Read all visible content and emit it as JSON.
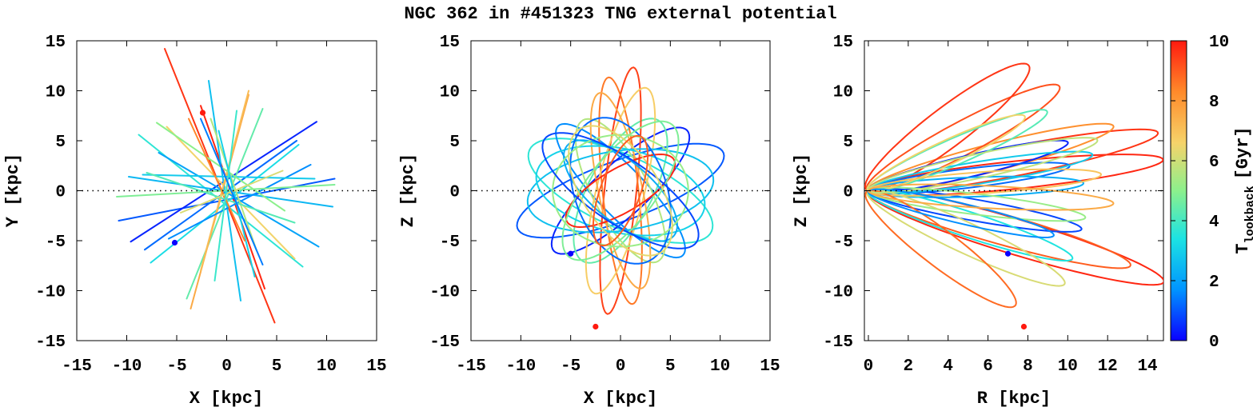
{
  "title": "NGC 362 in #451323 TNG external potential",
  "chart_data": [
    {
      "type": "scatter",
      "panel": "xy",
      "xlabel": "X [kpc]",
      "ylabel": "Y [kpc]",
      "xlim": [
        -15,
        15
      ],
      "ylim": [
        -15,
        15
      ],
      "xticks": [
        -15,
        -10,
        -5,
        0,
        5,
        10,
        15
      ],
      "yticks": [
        -15,
        -10,
        -5,
        0,
        5,
        10,
        15
      ],
      "zero_line": "dotted",
      "start_markers": [
        {
          "x": -5.2,
          "y": -5.2,
          "t_lookback": 0
        },
        {
          "x": -2.4,
          "y": 7.8,
          "t_lookback": 10
        }
      ],
      "streaks": [
        {
          "x1": -6.2,
          "y1": 14.2,
          "x2": 4.8,
          "y2": -13.2,
          "t": 9.6
        },
        {
          "x1": -2.6,
          "y1": 8.5,
          "x2": 3.8,
          "y2": -9.8,
          "t": 9.8
        },
        {
          "x1": -10.8,
          "y1": -3.0,
          "x2": 10.8,
          "y2": 1.2,
          "t": 1.0
        },
        {
          "x1": -9.6,
          "y1": -5.1,
          "x2": 9.0,
          "y2": 6.9,
          "t": 0.4
        },
        {
          "x1": -8.2,
          "y1": -5.9,
          "x2": 7.0,
          "y2": 5.0,
          "t": 1.2
        },
        {
          "x1": -7.6,
          "y1": -7.2,
          "x2": 7.2,
          "y2": 4.6,
          "t": 3.2
        },
        {
          "x1": -8.8,
          "y1": 5.6,
          "x2": 7.6,
          "y2": -7.6,
          "t": 3.6
        },
        {
          "x1": -6.0,
          "y1": 6.4,
          "x2": 6.8,
          "y2": -6.8,
          "t": 6.6
        },
        {
          "x1": -9.8,
          "y1": 1.4,
          "x2": 10.6,
          "y2": -1.6,
          "t": 2.4
        },
        {
          "x1": -4.0,
          "y1": -10.8,
          "x2": 3.6,
          "y2": 8.2,
          "t": 4.4
        },
        {
          "x1": -3.6,
          "y1": -11.8,
          "x2": 2.2,
          "y2": 9.6,
          "t": 7.6
        },
        {
          "x1": -1.8,
          "y1": 11.0,
          "x2": 1.4,
          "y2": -11.0,
          "t": 2.6
        },
        {
          "x1": 2.2,
          "y1": 10.0,
          "x2": -2.6,
          "y2": -8.0,
          "t": 7.2
        },
        {
          "x1": -6.8,
          "y1": 3.8,
          "x2": 9.2,
          "y2": -5.6,
          "t": 2.0
        },
        {
          "x1": -5.8,
          "y1": -4.8,
          "x2": 8.4,
          "y2": 2.6,
          "t": 1.6
        },
        {
          "x1": -11.0,
          "y1": -0.6,
          "x2": 10.8,
          "y2": 0.6,
          "t": 4.8
        },
        {
          "x1": -8.4,
          "y1": 1.6,
          "x2": 8.8,
          "y2": 1.2,
          "t": 2.8
        },
        {
          "x1": -1.6,
          "y1": 7.2,
          "x2": 3.0,
          "y2": -6.0,
          "t": 5.6
        },
        {
          "x1": -7.0,
          "y1": 6.8,
          "x2": 5.8,
          "y2": -2.0,
          "t": 5.0
        },
        {
          "x1": 6.8,
          "y1": -3.2,
          "x2": -8.0,
          "y2": 1.8,
          "t": 4.2
        },
        {
          "x1": -0.8,
          "y1": 6.0,
          "x2": 2.8,
          "y2": -8.6,
          "t": 3.0
        },
        {
          "x1": -3.8,
          "y1": 7.2,
          "x2": 1.8,
          "y2": -5.0,
          "t": 8.4
        },
        {
          "x1": -4.6,
          "y1": -2.2,
          "x2": 5.6,
          "y2": 2.0,
          "t": 6.2
        },
        {
          "x1": 1.0,
          "y1": 8.0,
          "x2": -1.2,
          "y2": -9.0,
          "t": 3.8
        },
        {
          "x1": -2.6,
          "y1": 7.2,
          "x2": 3.6,
          "y2": -7.4,
          "t": 1.4
        }
      ]
    },
    {
      "type": "scatter",
      "panel": "xz",
      "xlabel": "X [kpc]",
      "ylabel": "Z [kpc]",
      "xlim": [
        -15,
        15
      ],
      "ylim": [
        -15,
        15
      ],
      "xticks": [
        -15,
        -10,
        -5,
        0,
        5,
        10,
        15
      ],
      "yticks": [
        -15,
        -10,
        -5,
        0,
        5,
        10,
        15
      ],
      "zero_line": "dotted",
      "start_markers": [
        {
          "x": -5.0,
          "y": -6.3,
          "t_lookback": 0
        },
        {
          "x": -2.5,
          "y": -13.6,
          "t_lookback": 10
        }
      ],
      "orbits": [
        {
          "a": 11.0,
          "b": 3.0,
          "deg": 20,
          "t": 1.0
        },
        {
          "a": 10.0,
          "b": 3.6,
          "deg": -24,
          "t": 3.6
        },
        {
          "a": 9.0,
          "b": 2.6,
          "deg": 42,
          "t": 0.4
        },
        {
          "a": 9.0,
          "b": 2.4,
          "deg": -46,
          "t": 1.6
        },
        {
          "a": 8.0,
          "b": 3.2,
          "deg": 62,
          "t": 4.4
        },
        {
          "a": 8.0,
          "b": 2.8,
          "deg": -62,
          "t": 5.6
        },
        {
          "a": 12.4,
          "b": 1.6,
          "deg": 84,
          "t": 9.4
        },
        {
          "a": 11.4,
          "b": 1.8,
          "deg": 96,
          "t": 8.6
        },
        {
          "a": 10.6,
          "b": 2.4,
          "deg": 76,
          "t": 6.8
        },
        {
          "a": 10.0,
          "b": 2.2,
          "deg": 102,
          "t": 7.6
        },
        {
          "a": 9.4,
          "b": 4.0,
          "deg": 8,
          "t": 2.6
        },
        {
          "a": 8.6,
          "b": 4.2,
          "deg": -12,
          "t": 3.0
        },
        {
          "a": 6.2,
          "b": 2.2,
          "deg": 30,
          "t": 9.8
        },
        {
          "a": 7.0,
          "b": 3.0,
          "deg": 140,
          "t": 2.2
        },
        {
          "a": 7.6,
          "b": 4.6,
          "deg": 110,
          "t": 1.2
        },
        {
          "a": 8.4,
          "b": 3.4,
          "deg": 52,
          "t": 4.8
        },
        {
          "a": 6.8,
          "b": 5.6,
          "deg": 0,
          "t": 5.2
        },
        {
          "a": 9.2,
          "b": 3.2,
          "deg": -34,
          "t": 0.8
        },
        {
          "a": 7.4,
          "b": 3.8,
          "deg": 124,
          "t": 6.4
        },
        {
          "a": 5.8,
          "b": 2.0,
          "deg": 70,
          "t": 9.0
        }
      ]
    },
    {
      "type": "scatter",
      "panel": "rz",
      "xlabel": "R [kpc]",
      "ylabel": "Z [kpc]",
      "xlim": [
        -0.2,
        14.8
      ],
      "ylim": [
        -15,
        15
      ],
      "xticks": [
        0,
        2,
        4,
        6,
        8,
        10,
        12,
        14
      ],
      "yticks": [
        -15,
        -10,
        -5,
        0,
        5,
        10,
        15
      ],
      "zero_line": "dotted",
      "start_markers": [
        {
          "x": 7.0,
          "y": -6.3,
          "t_lookback": 0
        },
        {
          "x": 7.8,
          "y": -13.6,
          "t_lookback": 10
        }
      ],
      "loops": [
        {
          "rmax": 15.0,
          "ztop": 1.8,
          "deg": 12,
          "t": 9.8
        },
        {
          "rmax": 12.8,
          "ztop": 9.0,
          "deg": 22,
          "t": 9.6
        },
        {
          "rmax": 9.2,
          "ztop": -14.8,
          "deg": -32,
          "t": 9.8
        },
        {
          "rmax": 11.0,
          "ztop": 8.5,
          "deg": 28,
          "t": 8.2
        },
        {
          "rmax": 9.0,
          "ztop": 11.0,
          "deg": 48,
          "t": 9.2
        },
        {
          "rmax": 11.2,
          "ztop": -10.2,
          "deg": -30,
          "t": 9.0
        },
        {
          "rmax": 7.4,
          "ztop": 13.0,
          "deg": 58,
          "t": 9.6
        },
        {
          "rmax": 8.8,
          "ztop": 6.8,
          "deg": 26,
          "t": 0.4
        },
        {
          "rmax": 9.6,
          "ztop": 4.0,
          "deg": 14,
          "t": 1.2
        },
        {
          "rmax": 9.4,
          "ztop": -6.4,
          "deg": -20,
          "t": 0.8
        },
        {
          "rmax": 10.8,
          "ztop": 0.6,
          "deg": 4,
          "t": 2.2
        },
        {
          "rmax": 7.2,
          "ztop": 9.6,
          "deg": 42,
          "t": 4.2
        },
        {
          "rmax": 10.4,
          "ztop": 5.6,
          "deg": 18,
          "t": 2.8
        },
        {
          "rmax": 8.4,
          "ztop": -9.0,
          "deg": -34,
          "t": 3.4
        },
        {
          "rmax": 10.4,
          "ztop": -4.2,
          "deg": -14,
          "t": 5.2
        },
        {
          "rmax": 6.6,
          "ztop": 8.6,
          "deg": 44,
          "t": 6.6
        },
        {
          "rmax": 11.4,
          "ztop": 3.0,
          "deg": 8,
          "t": 7.0
        },
        {
          "rmax": 8.0,
          "ztop": -11.0,
          "deg": -44,
          "t": 6.2
        },
        {
          "rmax": 5.4,
          "ztop": -12.6,
          "deg": -58,
          "t": 8.8
        },
        {
          "rmax": 10.0,
          "ztop": 7.6,
          "deg": 24,
          "t": 5.8
        },
        {
          "rmax": 7.6,
          "ztop": -7.0,
          "deg": -26,
          "t": 1.6
        },
        {
          "rmax": 12.2,
          "ztop": -2.0,
          "deg": -6,
          "t": 7.6
        }
      ]
    }
  ],
  "colorbar": {
    "label_main": "T",
    "label_sub": "lookback",
    "label_unit": "[Gyr]",
    "range": [
      0,
      10
    ],
    "ticks": [
      0,
      2,
      4,
      6,
      8,
      10
    ],
    "colormap": "jet",
    "colors": [
      "#0a00ff",
      "#0094ff",
      "#1ce3e3",
      "#8cf08c",
      "#f6d36a",
      "#ff8a2a",
      "#ff1a0f"
    ]
  }
}
